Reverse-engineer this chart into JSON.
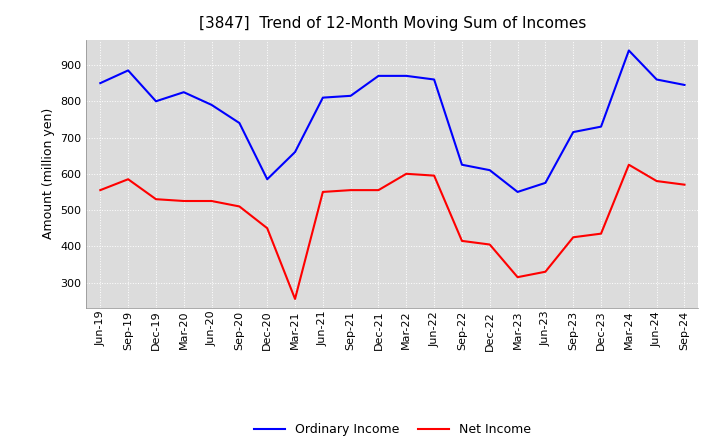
{
  "title": "[3847]  Trend of 12-Month Moving Sum of Incomes",
  "ylabel": "Amount (million yen)",
  "xlabel": "",
  "x_labels": [
    "Jun-19",
    "Sep-19",
    "Dec-19",
    "Mar-20",
    "Jun-20",
    "Sep-20",
    "Dec-20",
    "Mar-21",
    "Jun-21",
    "Sep-21",
    "Dec-21",
    "Mar-22",
    "Jun-22",
    "Sep-22",
    "Dec-22",
    "Mar-23",
    "Jun-23",
    "Sep-23",
    "Dec-23",
    "Mar-24",
    "Jun-24",
    "Sep-24"
  ],
  "ordinary_income": [
    850,
    885,
    800,
    825,
    790,
    740,
    585,
    660,
    810,
    815,
    870,
    870,
    860,
    625,
    610,
    550,
    575,
    715,
    730,
    940,
    860,
    845
  ],
  "net_income": [
    555,
    585,
    530,
    525,
    525,
    510,
    450,
    255,
    550,
    555,
    555,
    600,
    595,
    415,
    405,
    315,
    330,
    425,
    435,
    625,
    580,
    570
  ],
  "ordinary_color": "#0000FF",
  "net_color": "#FF0000",
  "ylim_min": 230,
  "ylim_max": 970,
  "yticks": [
    300,
    400,
    500,
    600,
    700,
    800,
    900
  ],
  "background_color": "#FFFFFF",
  "plot_bg_color": "#DCDCDC",
  "grid_color": "#FFFFFF",
  "title_fontsize": 11,
  "axis_fontsize": 9,
  "tick_fontsize": 8,
  "legend_fontsize": 9
}
